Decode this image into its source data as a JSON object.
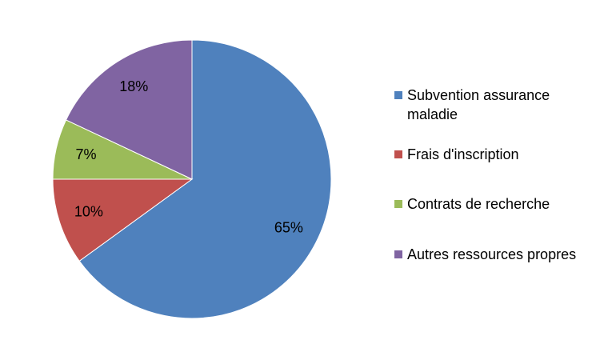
{
  "chart_data": {
    "type": "pie",
    "categories": [
      "Subvention assurance maladie",
      "Frais d'inscription",
      "Contrats de recherche",
      "Autres ressources propres"
    ],
    "values": [
      65,
      10,
      7,
      18
    ],
    "value_labels": [
      "65%",
      "10%",
      "7%",
      "18%"
    ],
    "colors": [
      "#4f81bd",
      "#c0504d",
      "#9bbb59",
      "#8064a2"
    ],
    "legend": "right"
  }
}
